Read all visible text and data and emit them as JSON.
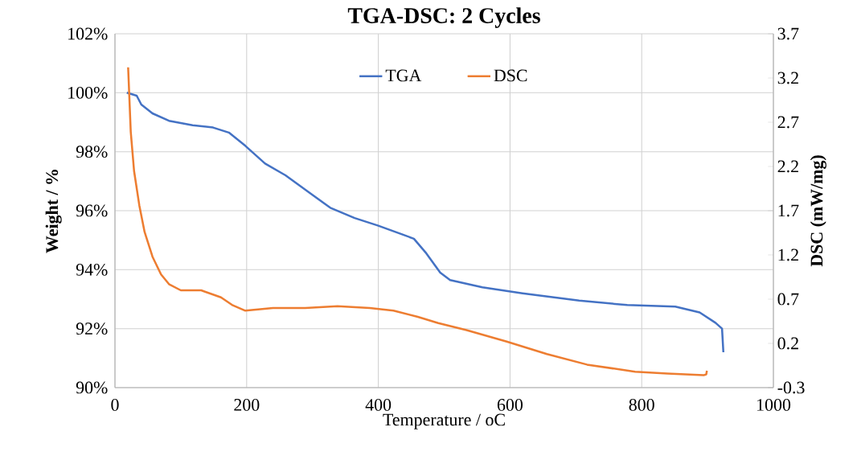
{
  "chart_data": {
    "type": "line",
    "title": "TGA-DSC: 2 Cycles",
    "xlabel": "Temperature / oC",
    "ylabel": "Weight  / %",
    "y2label": "DSC (mW/mg)",
    "xlim": [
      0,
      1000
    ],
    "xticks": [
      0,
      200,
      400,
      600,
      800,
      1000
    ],
    "ylim": [
      90,
      102
    ],
    "yticks": [
      {
        "value": 90,
        "label": "90%"
      },
      {
        "value": 92,
        "label": "92%"
      },
      {
        "value": 94,
        "label": "94%"
      },
      {
        "value": 96,
        "label": "96%"
      },
      {
        "value": 98,
        "label": "98%"
      },
      {
        "value": 100,
        "label": "100%"
      },
      {
        "value": 102,
        "label": "102%"
      }
    ],
    "y2lim": [
      -0.3,
      3.7
    ],
    "y2ticks": [
      -0.3,
      0.2,
      0.7,
      1.2,
      1.7,
      2.2,
      2.7,
      3.2,
      3.7
    ],
    "grid": true,
    "legend": "top",
    "marker": "none",
    "line_style": "solid",
    "series": [
      {
        "name": "TGA",
        "color": "#4472c4",
        "x": [
          18,
          33,
          40,
          57,
          82,
          118,
          149,
          173,
          198,
          228,
          259,
          296,
          327,
          364,
          399,
          436,
          454,
          473,
          494,
          509,
          558,
          619,
          705,
          778,
          851,
          888,
          912,
          922,
          924
        ],
        "values": [
          100.0,
          99.9,
          99.6,
          99.3,
          99.05,
          98.9,
          98.82,
          98.65,
          98.2,
          97.6,
          97.2,
          96.6,
          96.1,
          95.75,
          95.5,
          95.2,
          95.05,
          94.55,
          93.9,
          93.65,
          93.4,
          93.2,
          92.95,
          92.8,
          92.75,
          92.55,
          92.2,
          92.0,
          91.2
        ]
      },
      {
        "name": "DSC",
        "color": "#ed7d31",
        "axis": "y2",
        "x": [
          20,
          24,
          29,
          37,
          45,
          57,
          70,
          82,
          100,
          131,
          161,
          179,
          198,
          240,
          289,
          338,
          387,
          423,
          460,
          491,
          534,
          595,
          656,
          717,
          790,
          839,
          894,
          898,
          899
        ],
        "values": [
          3.32,
          2.59,
          2.15,
          1.76,
          1.46,
          1.18,
          0.98,
          0.87,
          0.8,
          0.8,
          0.72,
          0.63,
          0.57,
          0.6,
          0.6,
          0.62,
          0.6,
          0.57,
          0.5,
          0.43,
          0.35,
          0.22,
          0.08,
          -0.04,
          -0.12,
          -0.14,
          -0.16,
          -0.15,
          -0.11
        ]
      }
    ]
  }
}
